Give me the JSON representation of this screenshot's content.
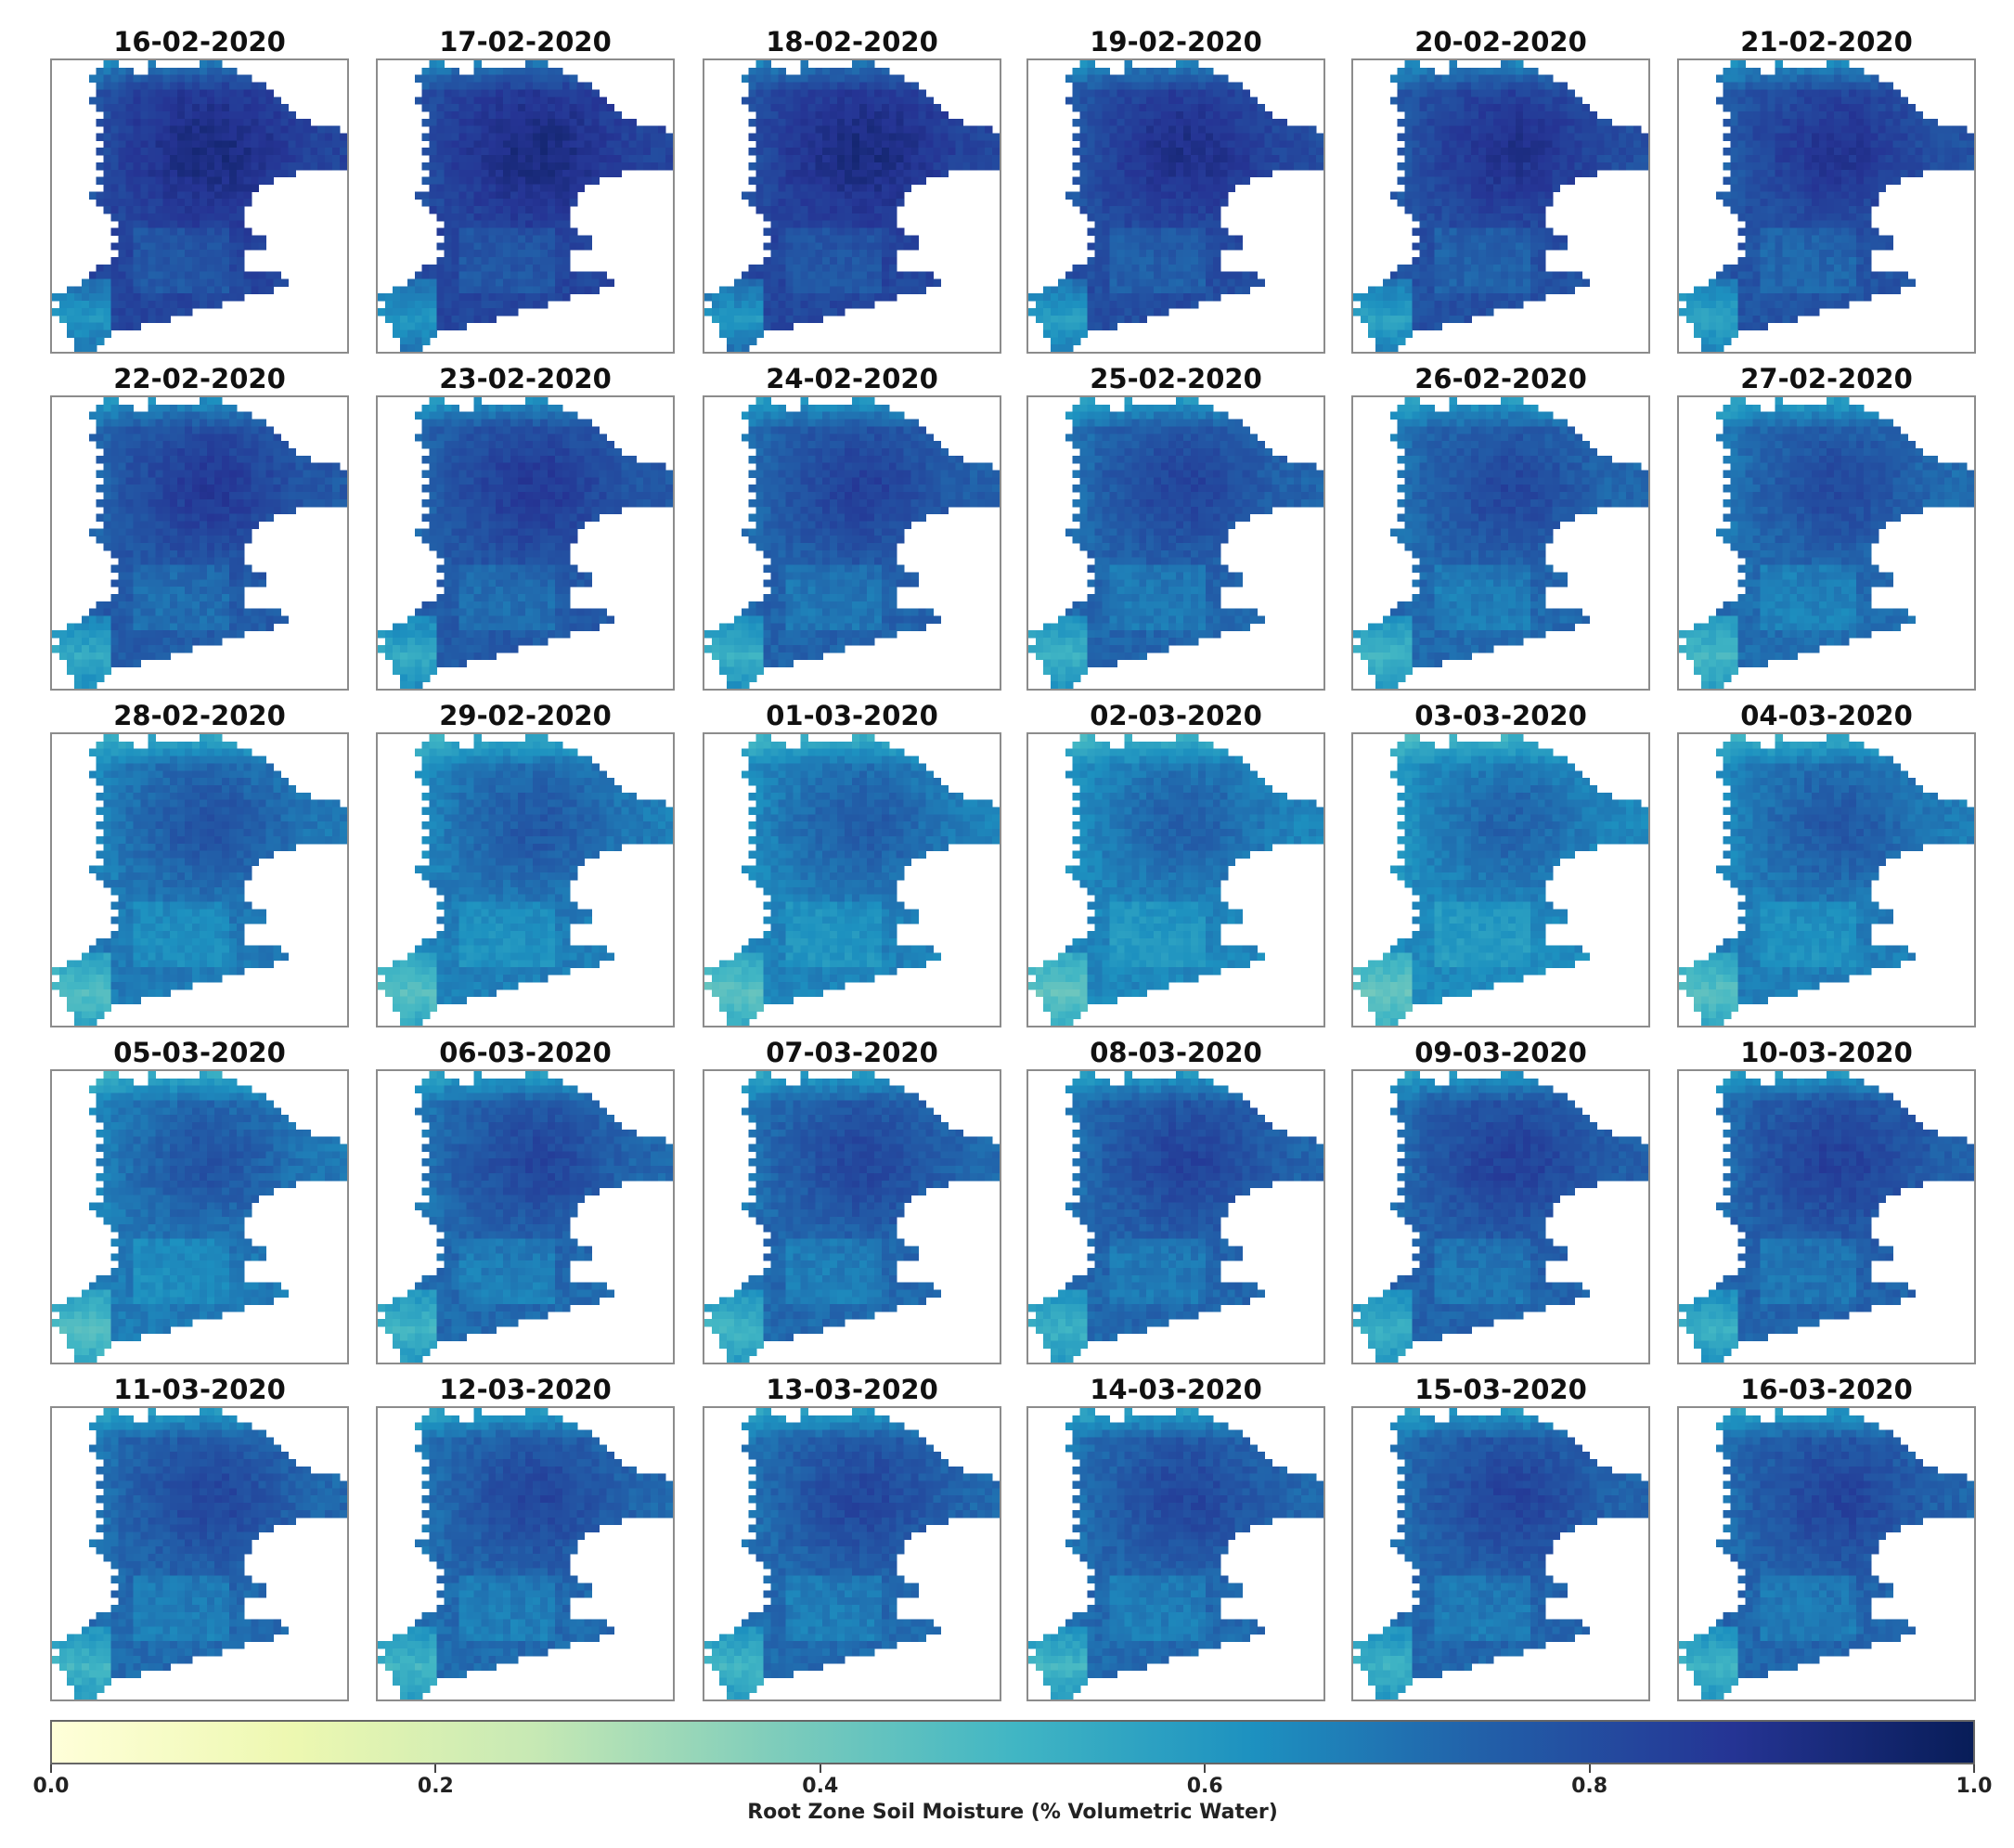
{
  "chart_data": {
    "type": "heatmap",
    "layout": "small-multiples",
    "grid": {
      "rows": 5,
      "cols": 6
    },
    "panel_titles": [
      "16-02-2020",
      "17-02-2020",
      "18-02-2020",
      "19-02-2020",
      "20-02-2020",
      "21-02-2020",
      "22-02-2020",
      "23-02-2020",
      "24-02-2020",
      "25-02-2020",
      "26-02-2020",
      "27-02-2020",
      "28-02-2020",
      "29-02-2020",
      "01-03-2020",
      "02-03-2020",
      "03-03-2020",
      "04-03-2020",
      "05-03-2020",
      "06-03-2020",
      "07-03-2020",
      "08-03-2020",
      "09-03-2020",
      "10-03-2020",
      "11-03-2020",
      "12-03-2020",
      "13-03-2020",
      "14-03-2020",
      "15-03-2020",
      "16-03-2020"
    ],
    "approx_mean_value": [
      0.82,
      0.82,
      0.82,
      0.8,
      0.79,
      0.78,
      0.76,
      0.76,
      0.74,
      0.73,
      0.72,
      0.71,
      0.68,
      0.67,
      0.66,
      0.65,
      0.64,
      0.67,
      0.68,
      0.72,
      0.72,
      0.73,
      0.74,
      0.74,
      0.72,
      0.72,
      0.72,
      0.72,
      0.73,
      0.73
    ],
    "colorbar": {
      "label": "Root Zone Soil Moisture (% Volumetric Water)",
      "range": [
        0.0,
        1.0
      ],
      "ticks": [
        0.0,
        0.2,
        0.4,
        0.6,
        0.8,
        1.0
      ],
      "tick_labels": [
        "0.0",
        "0.2",
        "0.4",
        "0.6",
        "0.8",
        "1.0"
      ],
      "colormap": "YlGnBu",
      "colormap_stops": [
        "#ffffd9",
        "#edf8b1",
        "#c7e9b4",
        "#7fcdbb",
        "#41b6c4",
        "#1d91c0",
        "#225ea8",
        "#253494",
        "#081d58"
      ],
      "orientation": "horizontal",
      "position": "bottom"
    }
  }
}
